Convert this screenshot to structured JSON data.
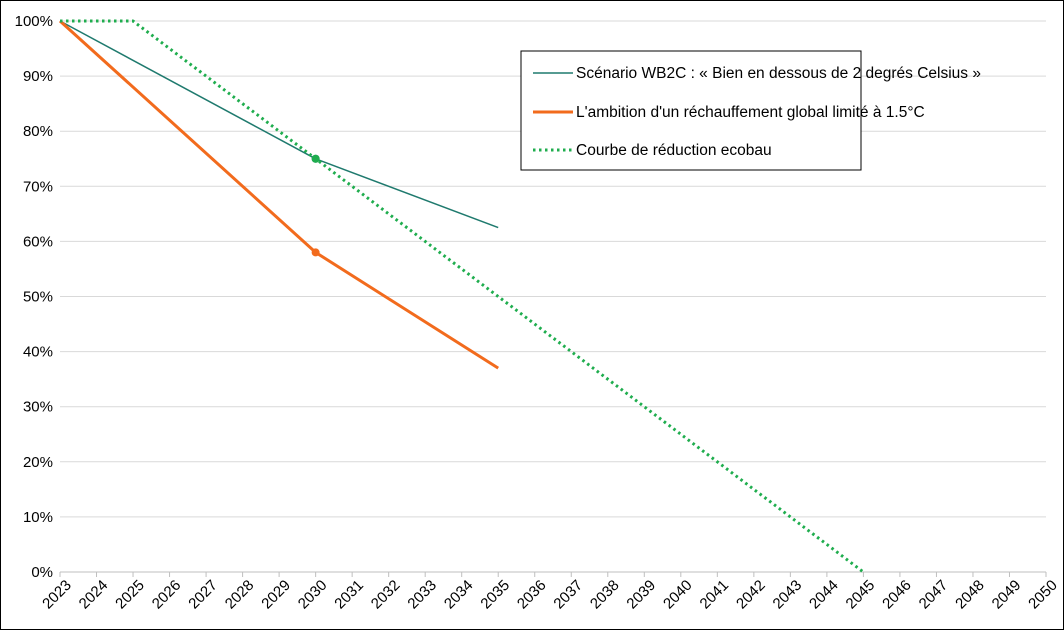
{
  "chart_data": {
    "type": "line",
    "x": [
      2023,
      2024,
      2025,
      2026,
      2027,
      2028,
      2029,
      2030,
      2031,
      2032,
      2033,
      2034,
      2035,
      2036,
      2037,
      2038,
      2039,
      2040,
      2041,
      2042,
      2043,
      2044,
      2045,
      2046,
      2047,
      2048,
      2049,
      2050
    ],
    "x_tick_labels": [
      "2023",
      "2024",
      "2025",
      "2026",
      "2027",
      "2028",
      "2029",
      "2030",
      "2031",
      "2032",
      "2033",
      "2034",
      "2035",
      "2036",
      "2037",
      "2038",
      "2039",
      "2040",
      "2041",
      "2042",
      "2043",
      "2044",
      "2045",
      "2046",
      "2047",
      "2048",
      "2049",
      "2050"
    ],
    "y_tick_labels": [
      "0%",
      "10%",
      "20%",
      "30%",
      "40%",
      "50%",
      "60%",
      "70%",
      "80%",
      "90%",
      "100%"
    ],
    "ylim": [
      0,
      100
    ],
    "y_unit": "%",
    "grid": "horizontal",
    "legend_position": "top-right",
    "series": [
      {
        "name": "Scénario WB2C : « Bien en dessous de 2 degrés Celsius »",
        "color": "#1f7a6e",
        "style": "solid-thin",
        "points": [
          [
            2023,
            100
          ],
          [
            2030,
            75
          ],
          [
            2035,
            62.5
          ]
        ],
        "markers": [
          [
            2030,
            75
          ]
        ]
      },
      {
        "name": "L'ambition d'un réchauffement global limité à 1.5°C",
        "color": "#f26b1d",
        "style": "solid-thick",
        "points": [
          [
            2023,
            100
          ],
          [
            2030,
            58
          ],
          [
            2035,
            37
          ]
        ],
        "markers": [
          [
            2030,
            58
          ]
        ]
      },
      {
        "name": "Courbe de réduction ecobau",
        "color": "#1fad4e",
        "style": "dotted",
        "points": [
          [
            2023,
            100
          ],
          [
            2025,
            100
          ],
          [
            2045,
            0
          ]
        ],
        "markers": [
          [
            2030,
            75
          ]
        ]
      }
    ]
  }
}
